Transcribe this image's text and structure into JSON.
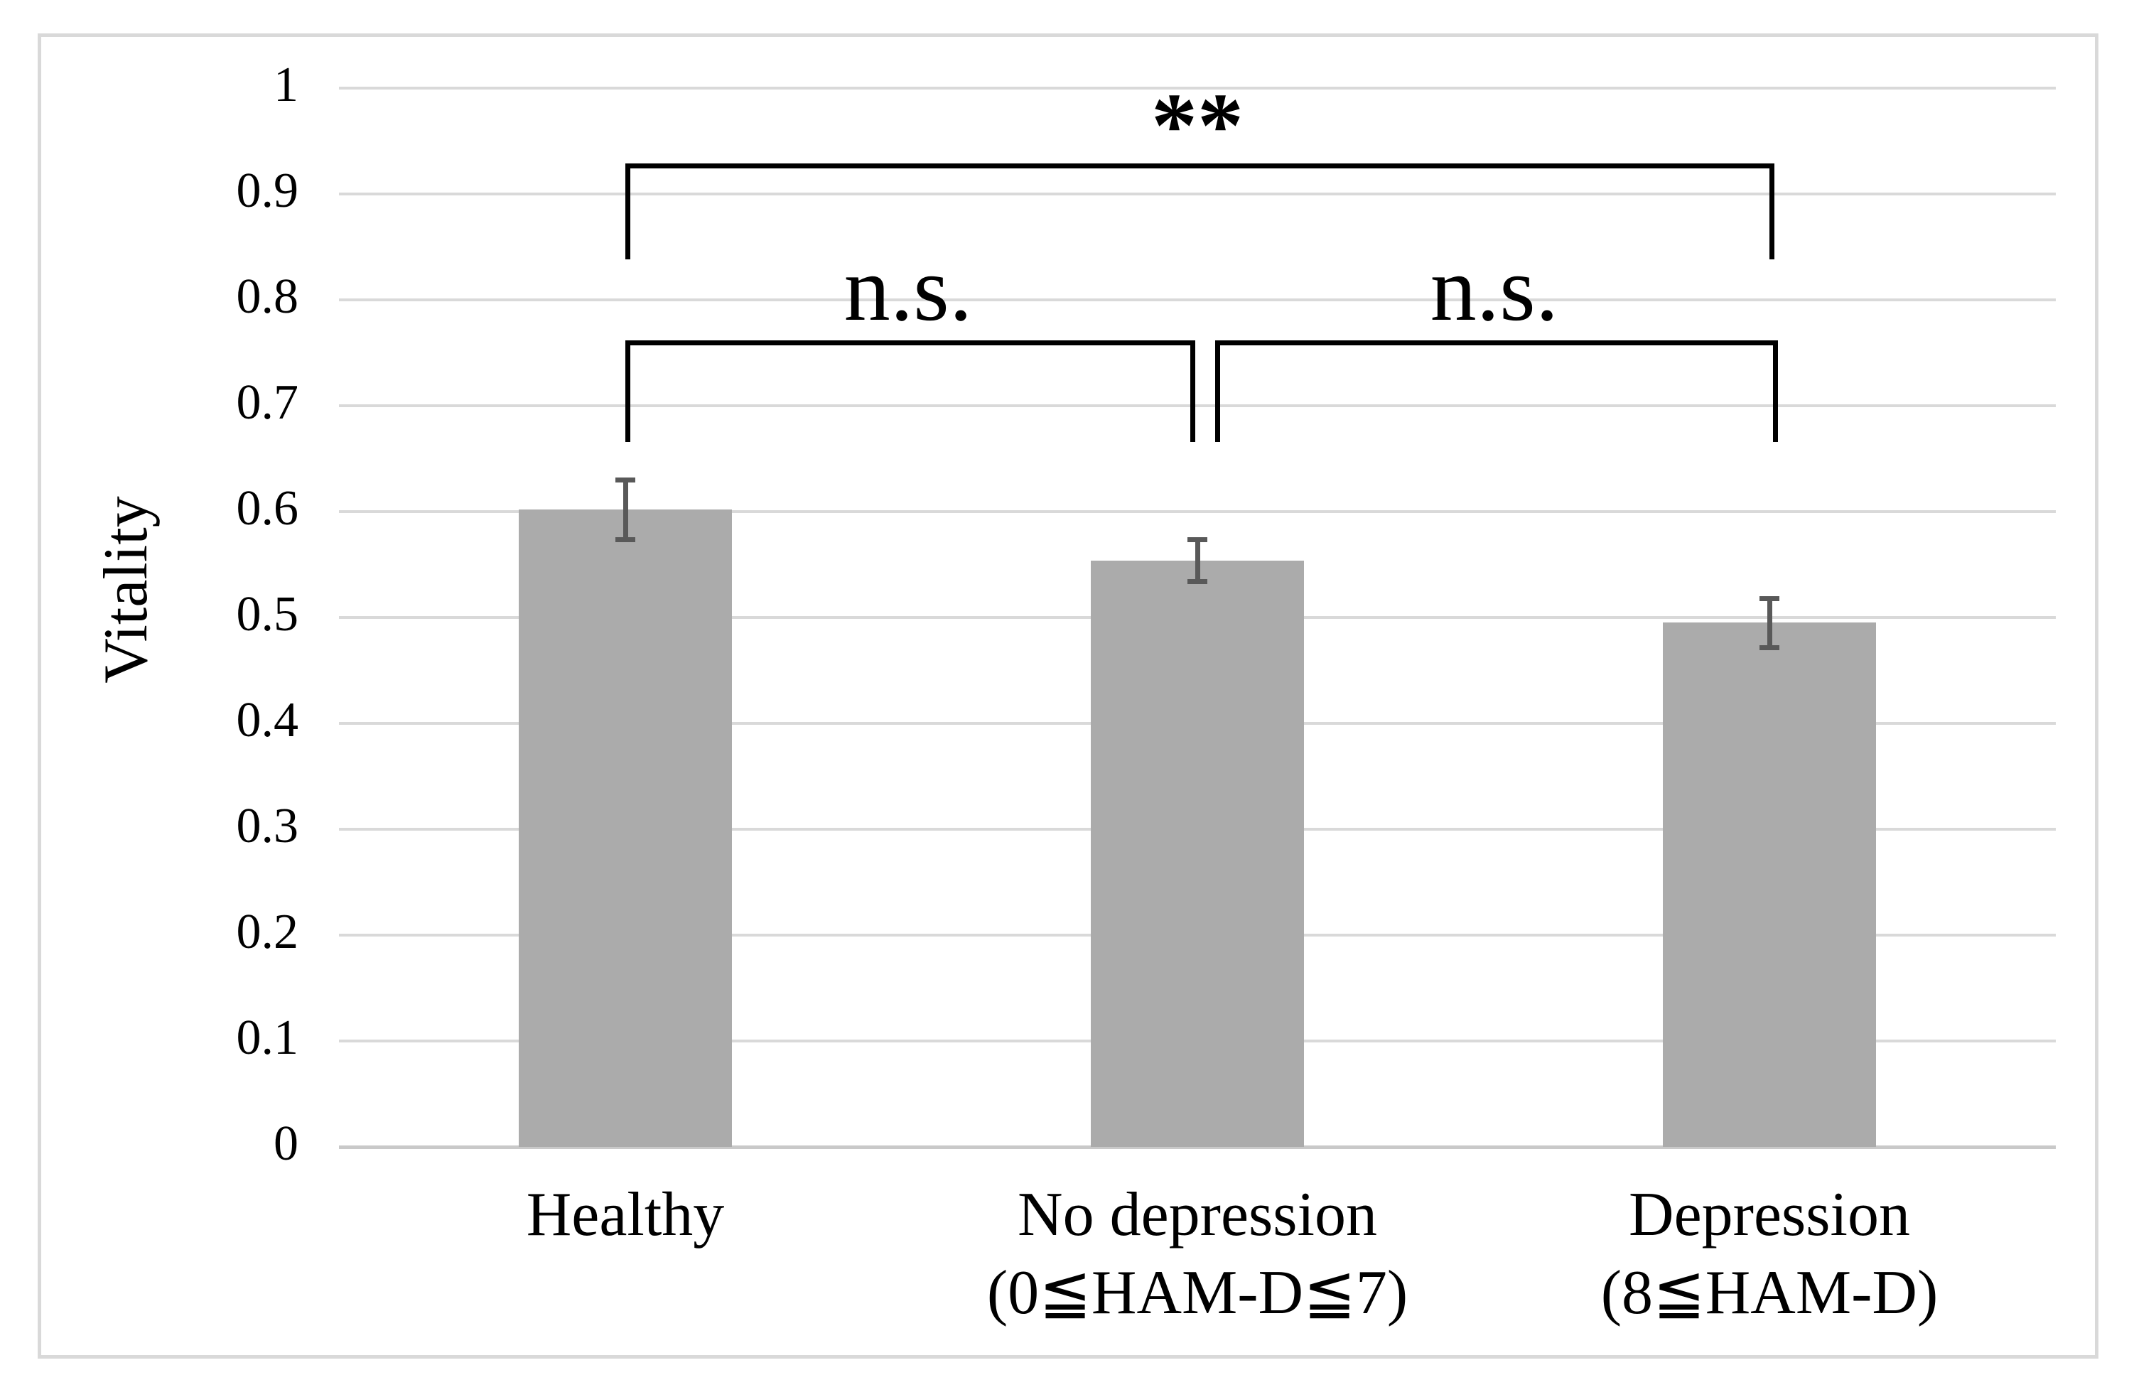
{
  "figure": {
    "background": "#ffffff",
    "border_color": "#D9D9D9",
    "bar_color": "#ABABAB",
    "error_bar_color": "#595959",
    "gridline_color": "#D9D9D9",
    "axisline_color": "#C9C9C9",
    "text_color": "#000000"
  },
  "chart_data": {
    "type": "bar",
    "title": "",
    "xlabel": "",
    "ylabel": "Vitality",
    "ylim": [
      0,
      1
    ],
    "ytick_interval": 0.1,
    "ytick_labels": [
      "1",
      "0.9",
      "0.8",
      "0.7",
      "0.6",
      "0.5",
      "0.4",
      "0.3",
      "0.2",
      "0.1",
      "0"
    ],
    "grid": true,
    "legend": null,
    "categories": [
      {
        "lines": [
          "Healthy"
        ]
      },
      {
        "lines": [
          "No depression",
          "(0≦HAM-D≦7)"
        ]
      },
      {
        "lines": [
          "Depression",
          "(8≦HAM-D)"
        ]
      }
    ],
    "values": [
      0.602,
      0.554,
      0.495
    ],
    "errors": [
      0.028,
      0.02,
      0.023
    ],
    "significance": [
      {
        "label": "**",
        "from": 0,
        "to": 2,
        "y": 0.929,
        "drop_to": 0.838,
        "bold": true
      },
      {
        "label": "n.s.",
        "from": 0,
        "to": 1,
        "y": 0.762,
        "drop_to": 0.666,
        "bold": false
      },
      {
        "label": "n.s.",
        "from": 1,
        "to": 2,
        "y": 0.762,
        "drop_to": 0.666,
        "bold": false
      }
    ]
  }
}
